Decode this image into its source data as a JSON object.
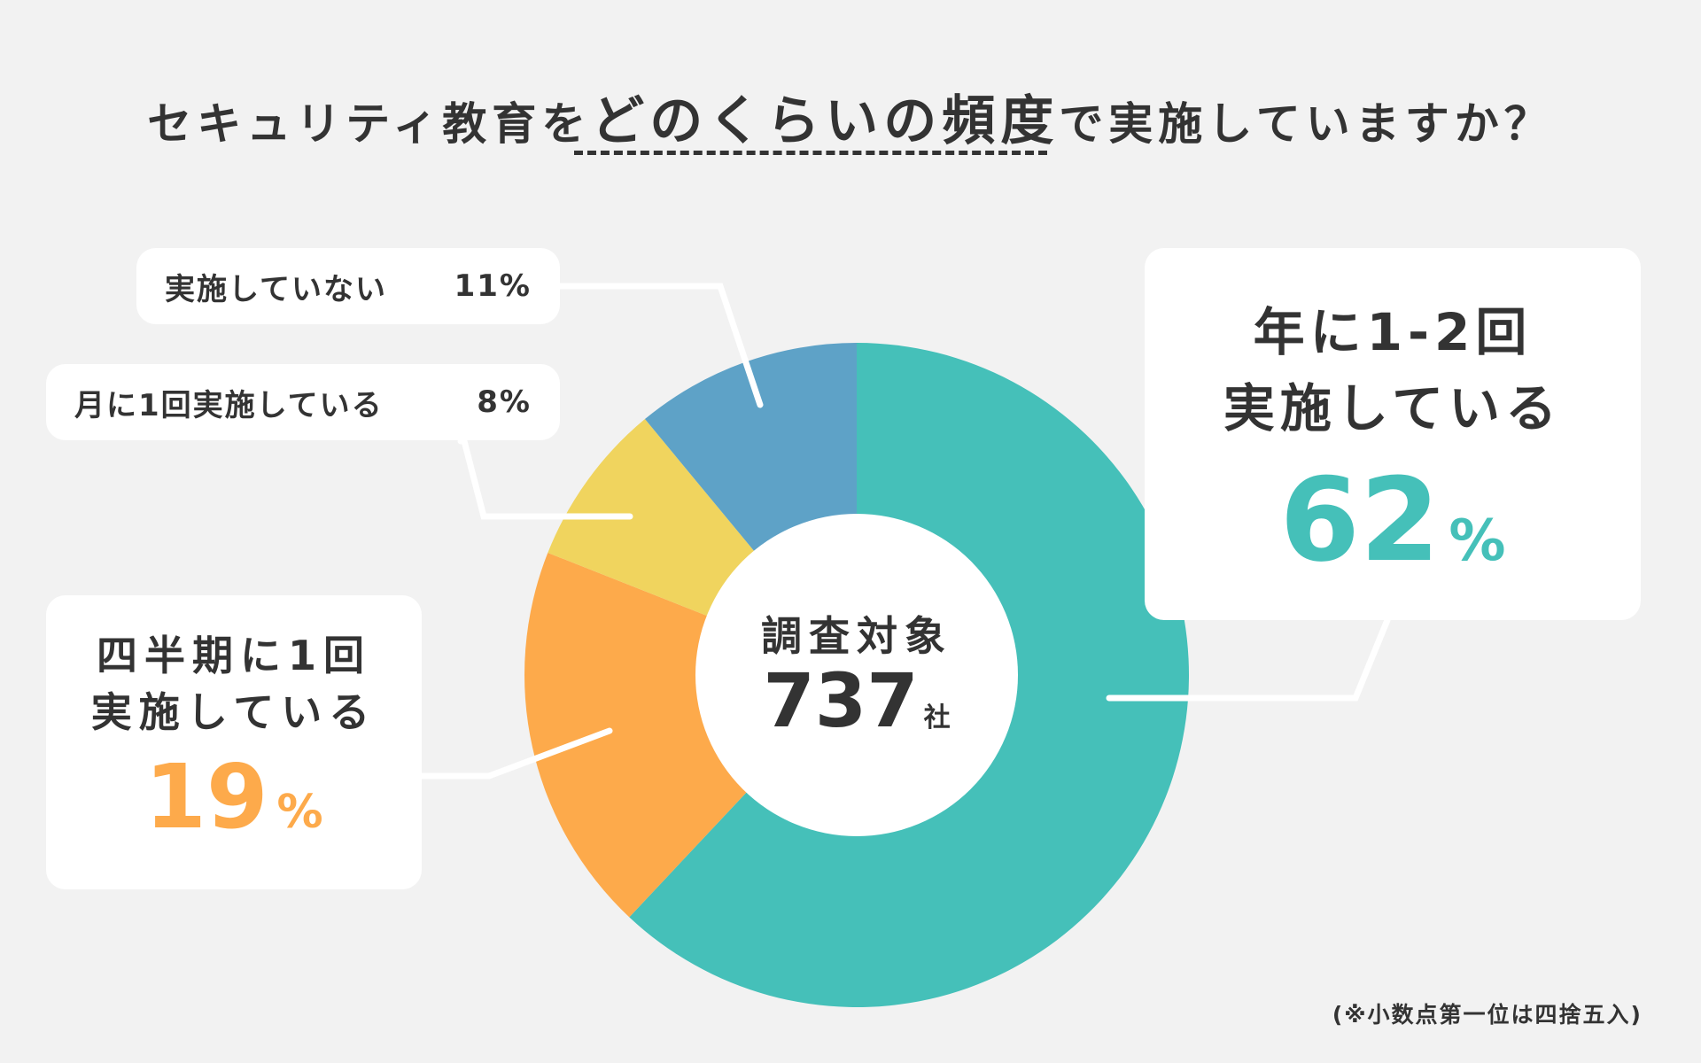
{
  "title": {
    "part1": "セキュリティ教育を",
    "part2": "どのくらいの頻度",
    "part3": "で実施していますか？"
  },
  "center": {
    "label": "調査対象",
    "count": "737",
    "unit": "社"
  },
  "note": "(※小数点第一位は四捨五入)",
  "labels": {
    "yearly": {
      "line1": "年に1-2回",
      "line2": "実施している",
      "value": "62",
      "pct_sign": "%"
    },
    "quarterly": {
      "line1": "四半期に1回",
      "line2": "実施している",
      "value": "19",
      "pct_sign": "%"
    },
    "monthly": {
      "text": "月に1回実施している",
      "pct": "8%"
    },
    "none": {
      "text": "実施していない",
      "pct": "11%"
    }
  },
  "colors": {
    "yearly": "#45c0b9",
    "quarterly": "#fdaa4b",
    "monthly": "#f0d45e",
    "none": "#5ea2c7",
    "background": "#f2f2f2",
    "text": "#333333",
    "leader": "#ffffff"
  },
  "chart_data": {
    "type": "pie",
    "categories": [
      "年に1-2回実施している",
      "四半期に1回実施している",
      "月に1回実施している",
      "実施していない"
    ],
    "values": [
      62,
      19,
      8,
      11
    ],
    "unit": "%",
    "donut": true,
    "start": "12 o'clock, clockwise"
  }
}
